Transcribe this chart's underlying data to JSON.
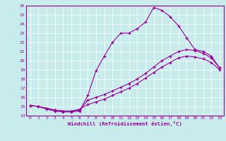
{
  "background_color": "#c8ecec",
  "line_color": "#990099",
  "xlim": [
    -0.5,
    23.5
  ],
  "ylim": [
    14,
    26
  ],
  "xticks": [
    0,
    1,
    2,
    3,
    4,
    5,
    6,
    7,
    8,
    9,
    10,
    11,
    12,
    13,
    14,
    15,
    16,
    17,
    18,
    19,
    20,
    21,
    22,
    23
  ],
  "yticks": [
    14,
    15,
    16,
    17,
    18,
    19,
    20,
    21,
    22,
    23,
    24,
    25,
    26
  ],
  "xlabel": "Windchill (Refroidissement éolien,°C)",
  "s1x": [
    0,
    1,
    2,
    3,
    4,
    5,
    6,
    7,
    8,
    9,
    10,
    11,
    12,
    13,
    14,
    15,
    16,
    17,
    18,
    19,
    20,
    21,
    22,
    23
  ],
  "s1y": [
    15.1,
    15.0,
    14.7,
    14.5,
    14.4,
    14.4,
    14.5,
    16.2,
    18.9,
    20.5,
    22.0,
    23.0,
    23.0,
    23.5,
    24.2,
    25.8,
    25.5,
    24.8,
    23.8,
    22.5,
    21.2,
    21.0,
    20.5,
    19.2
  ],
  "s2x": [
    0,
    1,
    2,
    3,
    4,
    5,
    6,
    7,
    8,
    9,
    10,
    11,
    12,
    13,
    14,
    15,
    16,
    17,
    18,
    19,
    20,
    21,
    22,
    23
  ],
  "s2y": [
    15.1,
    15.0,
    14.8,
    14.6,
    14.5,
    14.5,
    14.6,
    15.7,
    16.0,
    16.3,
    16.7,
    17.1,
    17.5,
    18.0,
    18.6,
    19.3,
    20.0,
    20.5,
    21.0,
    21.2,
    21.1,
    20.8,
    20.3,
    19.2
  ],
  "s3x": [
    0,
    1,
    2,
    3,
    4,
    5,
    6,
    7,
    8,
    9,
    10,
    11,
    12,
    13,
    14,
    15,
    16,
    17,
    18,
    19,
    20,
    21,
    22,
    23
  ],
  "s3y": [
    15.1,
    15.0,
    14.8,
    14.6,
    14.5,
    14.5,
    14.7,
    15.2,
    15.5,
    15.8,
    16.2,
    16.6,
    17.0,
    17.5,
    18.1,
    18.7,
    19.3,
    19.8,
    20.3,
    20.5,
    20.4,
    20.2,
    19.8,
    19.0
  ]
}
